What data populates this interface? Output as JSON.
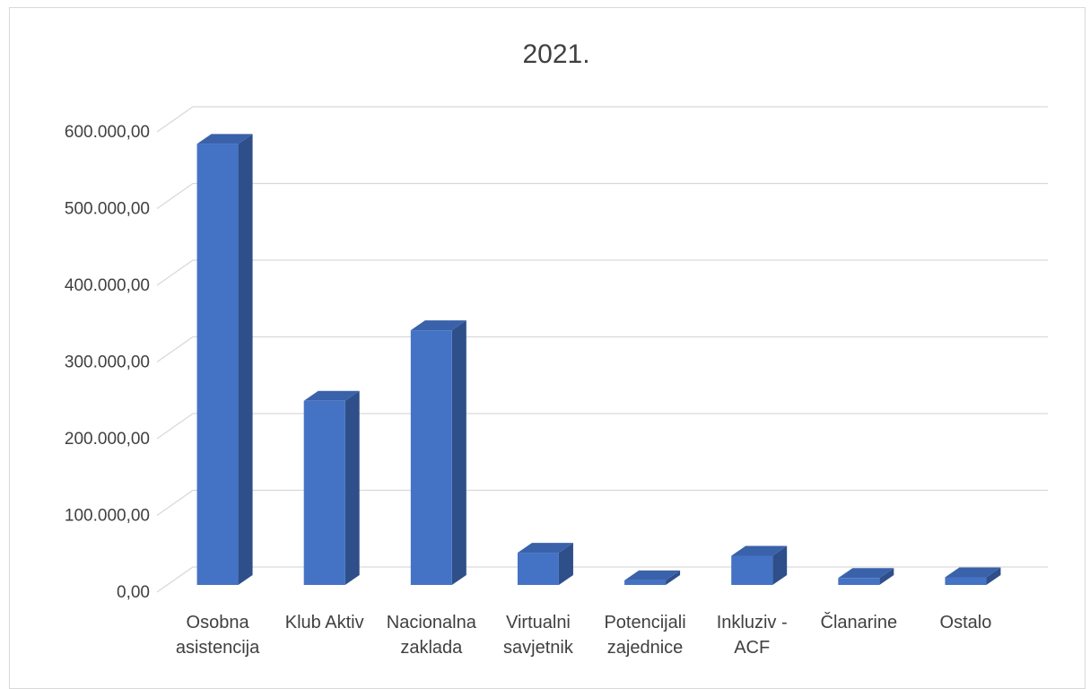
{
  "chart_data": {
    "type": "bar",
    "title": "2021.",
    "xlabel": "",
    "ylabel": "",
    "ylim": [
      0,
      600000
    ],
    "yticks": [
      0,
      100000,
      200000,
      300000,
      400000,
      500000,
      600000
    ],
    "ytick_labels": [
      "0,00",
      "100.000,00",
      "200.000,00",
      "300.000,00",
      "400.000,00",
      "500.000,00",
      "600.000,00"
    ],
    "categories": [
      [
        "Osobna",
        "asistencija"
      ],
      [
        "Klub Aktiv"
      ],
      [
        "Nacionalna",
        "zaklada"
      ],
      [
        "Virtualni",
        "savjetnik"
      ],
      [
        "Potencijali",
        "zajednice"
      ],
      [
        "Inkluziv -",
        "ACF"
      ],
      [
        "Članarine"
      ],
      [
        "Ostalo"
      ]
    ],
    "values": [
      575000,
      240000,
      332000,
      42000,
      6000,
      38000,
      9000,
      10000
    ],
    "grid": true,
    "three_d": true,
    "bar_color": "#4472c4",
    "bar_side_color": "#2f4f8a",
    "bar_top_color": "#3a62aa",
    "grid_color": "#d9d9d9",
    "text_color": "#404040"
  }
}
